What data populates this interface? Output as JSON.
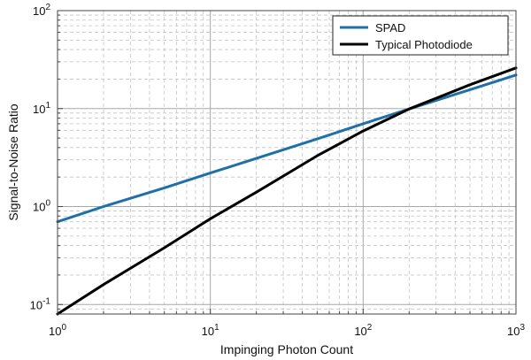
{
  "chart_data": {
    "type": "line",
    "xscale": "log",
    "yscale": "log",
    "xlabel": "Impinging Photon Count",
    "ylabel": "Signal-to-Noise Ratio",
    "xlim": [
      1,
      1000
    ],
    "ylim": [
      0.08,
      100
    ],
    "x_ticks": [
      {
        "base": "10",
        "exp": "0"
      },
      {
        "base": "10",
        "exp": "1"
      },
      {
        "base": "10",
        "exp": "2"
      },
      {
        "base": "10",
        "exp": "3"
      }
    ],
    "y_ticks": [
      {
        "base": "10",
        "exp": "-1"
      },
      {
        "base": "10",
        "exp": "0"
      },
      {
        "base": "10",
        "exp": "1"
      },
      {
        "base": "10",
        "exp": "2"
      }
    ],
    "grid": true,
    "legend": "top-right",
    "series": [
      {
        "name": "SPAD",
        "color": "#1f6fa8",
        "x": [
          1,
          2,
          5,
          10,
          20,
          50,
          100,
          200,
          500,
          1000
        ],
        "y": [
          0.7,
          1.0,
          1.55,
          2.2,
          3.1,
          4.9,
          7.0,
          9.9,
          15.6,
          22.0
        ]
      },
      {
        "name": "Typical Photodiode",
        "color": "#000000",
        "x": [
          1,
          2,
          5,
          10,
          20,
          50,
          100,
          200,
          500,
          1000
        ],
        "y": [
          0.08,
          0.16,
          0.38,
          0.75,
          1.4,
          3.3,
          5.9,
          9.9,
          17.5,
          26.0
        ]
      }
    ]
  }
}
